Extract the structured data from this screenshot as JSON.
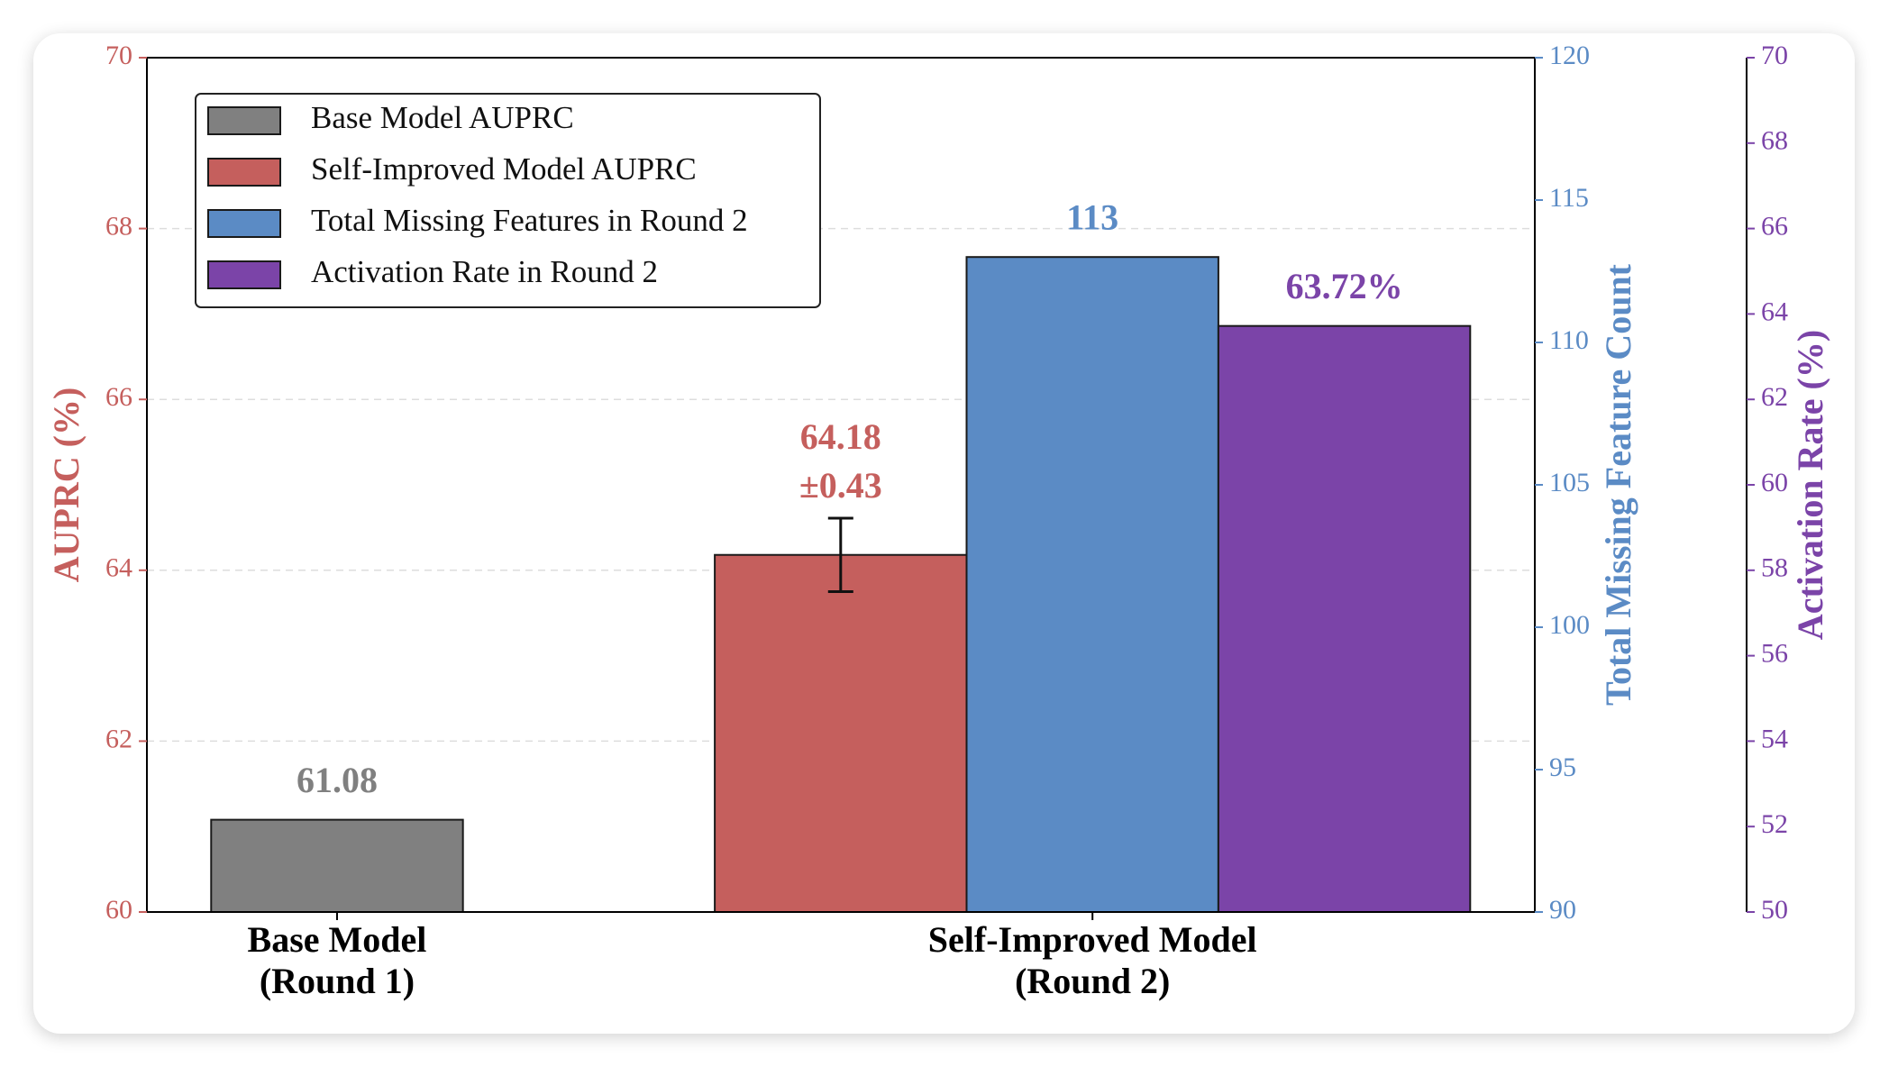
{
  "chart_data": {
    "type": "bar",
    "categories": [
      "Base Model\n(Round 1)",
      "Self-Improved Model\n(Round 2)"
    ],
    "series": [
      {
        "name": "Base Model AUPRC",
        "color": "#808080",
        "axis": "y",
        "values": [
          61.08,
          null
        ]
      },
      {
        "name": "Self-Improved Model AUPRC",
        "color": "#c55f5d",
        "axis": "y",
        "values": [
          null,
          64.18
        ],
        "error": [
          null,
          0.43
        ],
        "error_labels": [
          null,
          "±0.43"
        ]
      },
      {
        "name": "Total Missing Features in Round 2",
        "color": "#5b8bc5",
        "axis": "y2",
        "values": [
          null,
          113
        ]
      },
      {
        "name": "Activation Rate in Round 2",
        "color": "#7b44a8",
        "axis": "y3",
        "values": [
          null,
          63.72
        ],
        "value_labels": [
          null,
          "63.72%"
        ]
      }
    ],
    "ylabel": "AUPRC (%)",
    "ylim": [
      60,
      70
    ],
    "yticks": [
      60,
      62,
      64,
      66,
      68,
      70
    ],
    "y2label": "Total Missing Feature Count",
    "y2lim": [
      90,
      120
    ],
    "y2ticks": [
      90,
      95,
      100,
      105,
      110,
      115,
      120
    ],
    "y3label": "Activation Rate (%)",
    "y3lim": [
      50,
      70
    ],
    "y3ticks": [
      50,
      52,
      54,
      56,
      58,
      60,
      62,
      64,
      66,
      68,
      70
    ],
    "grid": true,
    "legend": "upper left"
  }
}
